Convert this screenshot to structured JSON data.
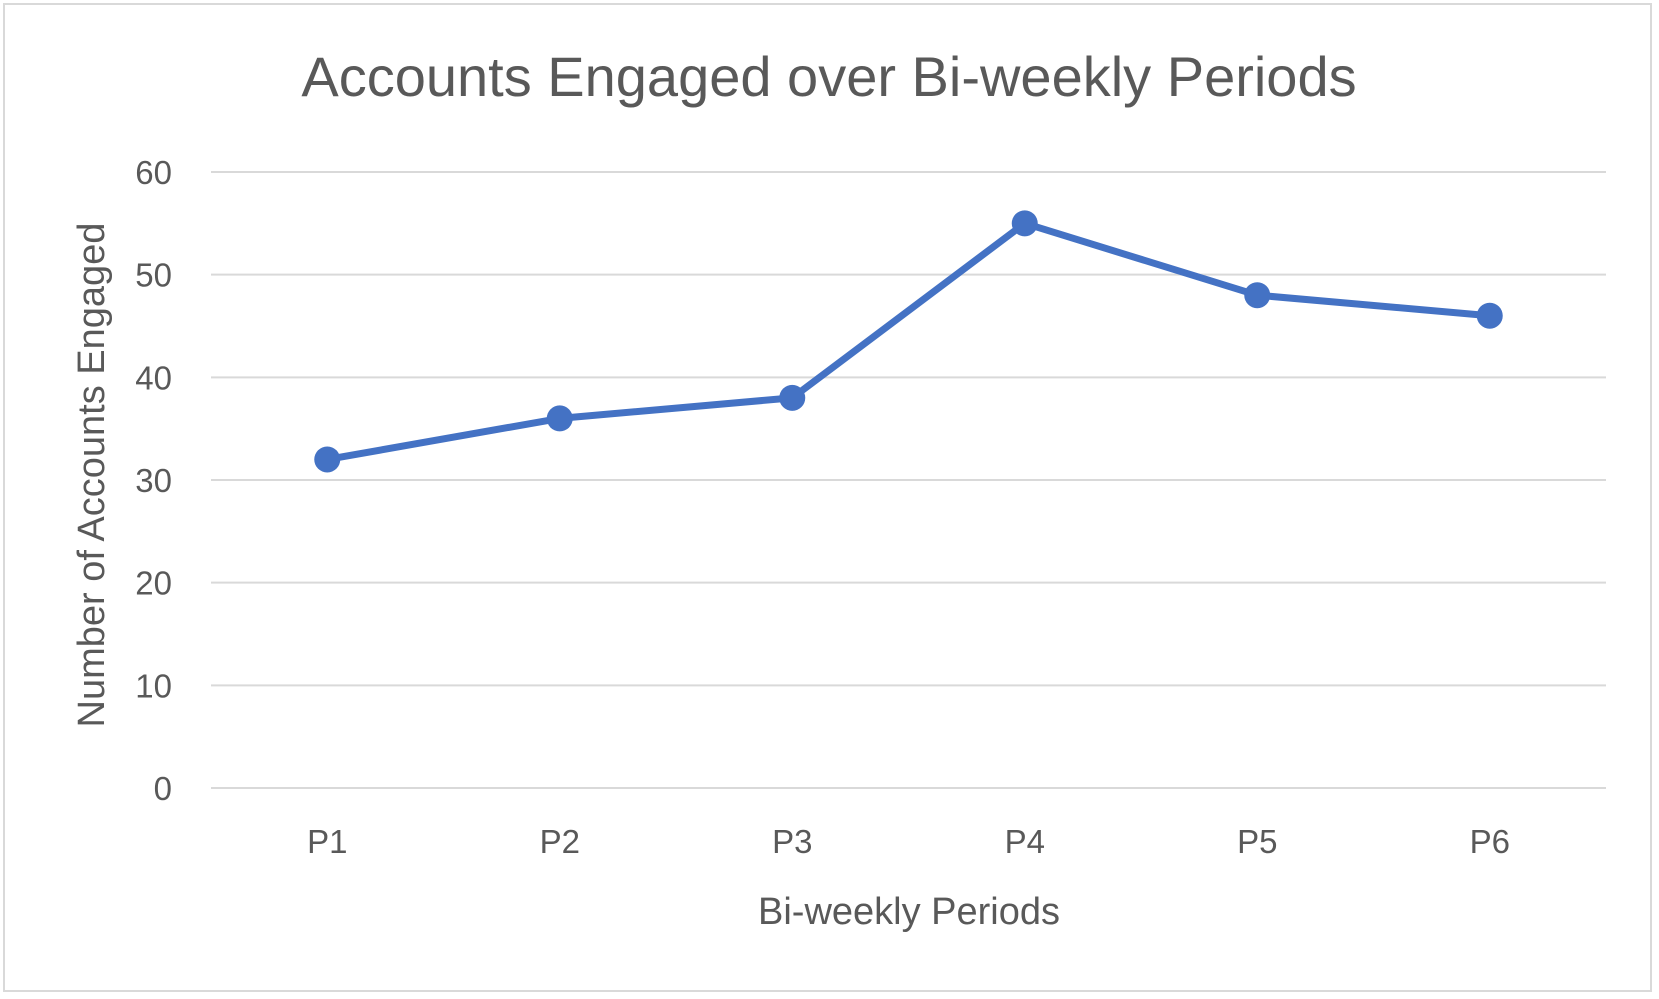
{
  "chart_data": {
    "type": "line",
    "title": "Accounts Engaged over Bi-weekly Periods",
    "xlabel": "Bi-weekly Periods",
    "ylabel": "Number of Accounts Engaged",
    "categories": [
      "P1",
      "P2",
      "P3",
      "P4",
      "P5",
      "P6"
    ],
    "series": [
      {
        "values": [
          32,
          36,
          38,
          55,
          48,
          46
        ]
      }
    ],
    "ylim": [
      0,
      60
    ],
    "yticks": [
      0,
      10,
      20,
      30,
      40,
      50,
      60
    ],
    "grid": true,
    "legend": "none",
    "colors": {
      "series": "#4472c4",
      "grid": "#d9d9d9",
      "text": "#595959",
      "border": "#d9d9d9"
    }
  }
}
